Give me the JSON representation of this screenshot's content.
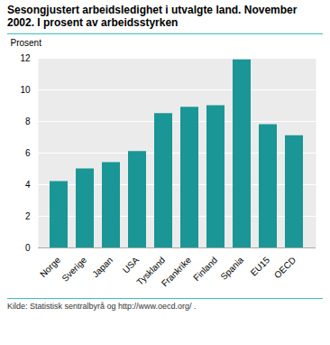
{
  "chart_data": {
    "type": "bar",
    "title": "Sesongjustert arbeidsledighet i utvalgte land. November 2002. I prosent av arbeidsstyrken",
    "ylabel": "Prosent",
    "source": "Kilde: Statistisk sentralbyrå og http://www.oecd.org/ .",
    "categories": [
      "Norge",
      "Sverige",
      "Japan",
      "USA",
      "Tyskland",
      "Frankrike",
      "Finland",
      "Spania",
      "EU15",
      "OECD"
    ],
    "values": [
      4.2,
      5.0,
      5.4,
      6.1,
      8.5,
      8.9,
      9.0,
      11.9,
      7.8,
      7.1
    ],
    "color": "#1a9696",
    "ylim": [
      0,
      12
    ],
    "yticks": [
      0,
      2,
      4,
      6,
      8,
      10,
      12
    ],
    "grid": true
  }
}
